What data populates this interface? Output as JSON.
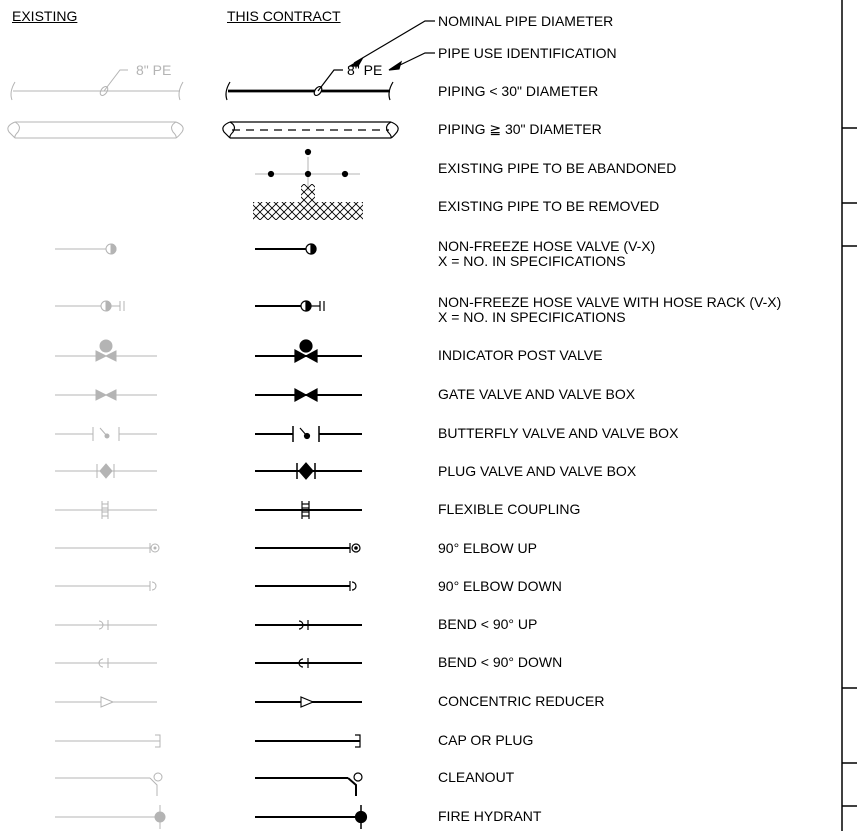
{
  "headers": {
    "existing": "EXISTING",
    "this_contract": "THIS CONTRACT"
  },
  "annotations": {
    "pipe_size_label": "8\" PE",
    "nominal_diameter": "NOMINAL PIPE DIAMETER",
    "use_identification": "PIPE USE IDENTIFICATION"
  },
  "legend_rows": [
    {
      "symbol": "pipe-lt30",
      "label": "PIPING < 30\" DIAMETER"
    },
    {
      "symbol": "pipe-ge30",
      "label": "PIPING ≧ 30\" DIAMETER"
    },
    {
      "symbol": "abandoned",
      "label": "EXISTING PIPE TO BE ABANDONED"
    },
    {
      "symbol": "removed",
      "label": "EXISTING PIPE TO BE REMOVED"
    },
    {
      "symbol": "hose-valve",
      "label": "NON-FREEZE HOSE VALVE (V-X)\nX = NO. IN SPECIFICATIONS"
    },
    {
      "symbol": "hose-valve-rack",
      "label": "NON-FREEZE HOSE VALVE WITH HOSE RACK (V-X)\nX = NO. IN SPECIFICATIONS"
    },
    {
      "symbol": "indicator-post-valve",
      "label": "INDICATOR POST VALVE"
    },
    {
      "symbol": "gate-valve",
      "label": "GATE VALVE AND VALVE BOX"
    },
    {
      "symbol": "butterfly-valve",
      "label": "BUTTERFLY VALVE AND VALVE BOX"
    },
    {
      "symbol": "plug-valve",
      "label": "PLUG VALVE AND VALVE BOX"
    },
    {
      "symbol": "flexible-coupling",
      "label": "FLEXIBLE COUPLING"
    },
    {
      "symbol": "elbow-up",
      "label": "90° ELBOW UP"
    },
    {
      "symbol": "elbow-down",
      "label": "90° ELBOW DOWN"
    },
    {
      "symbol": "bend-up",
      "label": "BEND < 90° UP"
    },
    {
      "symbol": "bend-down",
      "label": "BEND < 90° DOWN"
    },
    {
      "symbol": "concentric-reducer",
      "label": "CONCENTRIC REDUCER"
    },
    {
      "symbol": "cap-or-plug",
      "label": "CAP OR PLUG"
    },
    {
      "symbol": "cleanout",
      "label": "CLEANOUT"
    },
    {
      "symbol": "fire-hydrant",
      "label": "FIRE HYDRANT"
    }
  ],
  "colors": {
    "existing_symbol": "#b4b4b4",
    "contract_symbol": "#000000"
  }
}
